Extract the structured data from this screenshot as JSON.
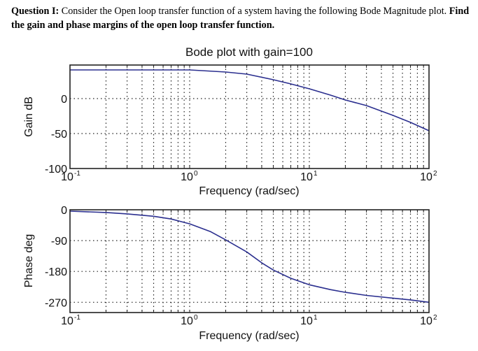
{
  "question": {
    "label": "Question I:",
    "text": " Consider the Open loop transfer function of a system having the following Bode Magnitude plot.  ",
    "bold_text": "Find the gain and phase margins of the open loop transfer function."
  },
  "chart_data": [
    {
      "type": "line",
      "title": "Bode plot with gain=100",
      "xlabel": "Frequency (rad/sec)",
      "ylabel": "Gain dB",
      "xscale": "log",
      "xlim": [
        0.1,
        100
      ],
      "ylim": [
        -100,
        48
      ],
      "xticks": [
        0.1,
        1,
        10,
        100
      ],
      "xtick_labels": [
        "10",
        "10",
        "10",
        "10"
      ],
      "xtick_exponents": [
        "-1",
        "0",
        "1",
        "2"
      ],
      "yticks": [
        0,
        -50,
        -100
      ],
      "ytick_labels": [
        "0",
        "-50",
        "-100"
      ],
      "grid": true,
      "line_color": "#2b2f8f",
      "series": [
        {
          "name": "Gain",
          "x": [
            0.1,
            0.2,
            0.5,
            1,
            2,
            3,
            5,
            7,
            10,
            15,
            20,
            30,
            50,
            70,
            100
          ],
          "y": [
            41,
            41,
            41,
            41,
            38,
            35,
            27,
            21,
            14,
            5,
            -2,
            -10,
            -24,
            -34,
            -46
          ]
        }
      ]
    },
    {
      "type": "line",
      "title": "",
      "xlabel": "Frequency (rad/sec)",
      "ylabel": "Phase deg",
      "xscale": "log",
      "xlim": [
        0.1,
        100
      ],
      "ylim": [
        -300,
        0
      ],
      "xticks": [
        0.1,
        1,
        10,
        100
      ],
      "xtick_labels": [
        "10",
        "10",
        "10",
        "10"
      ],
      "xtick_exponents": [
        "-1",
        "0",
        "1",
        "2"
      ],
      "yticks": [
        0,
        -90,
        -180,
        -270
      ],
      "ytick_labels": [
        "0",
        "-90",
        "-180",
        "-270"
      ],
      "grid": true,
      "line_color": "#2b2f8f",
      "series": [
        {
          "name": "Phase",
          "x": [
            0.1,
            0.2,
            0.3,
            0.5,
            0.7,
            1,
            1.5,
            2,
            3,
            4,
            5,
            7,
            10,
            15,
            20,
            30,
            50,
            70,
            100
          ],
          "y": [
            -4,
            -8,
            -12,
            -19,
            -27,
            -41,
            -64,
            -88,
            -123,
            -155,
            -176,
            -200,
            -219,
            -233,
            -241,
            -250,
            -258,
            -263,
            -270
          ]
        }
      ]
    }
  ]
}
